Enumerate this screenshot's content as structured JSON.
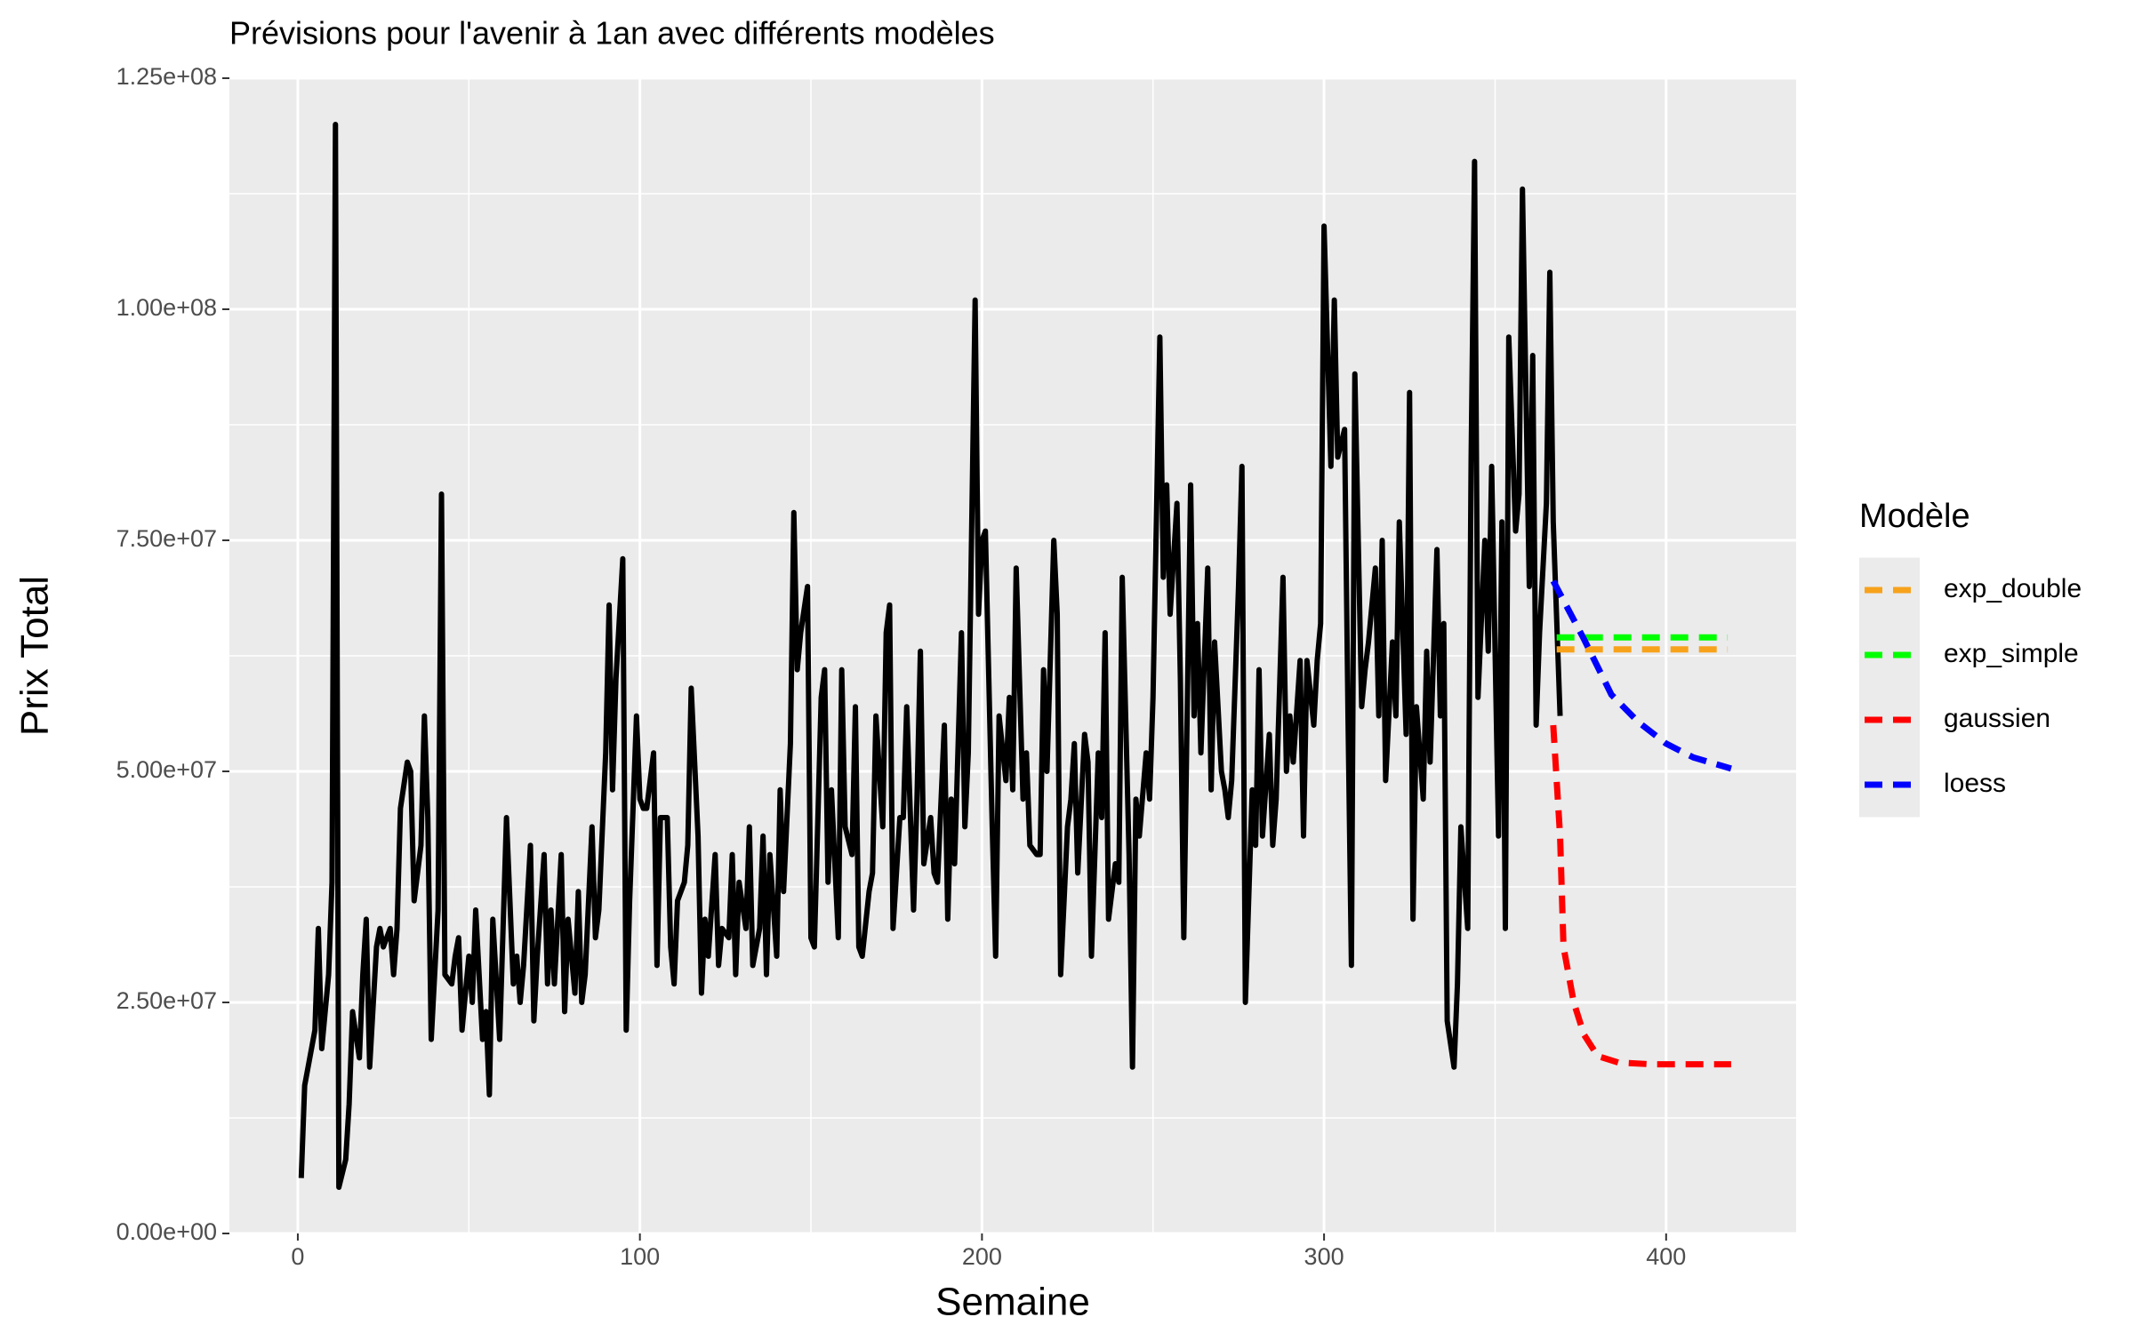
{
  "chart_data": {
    "type": "line",
    "title": "Prévisions pour l'avenir à 1an avec différents modèles",
    "x_label": "Semaine",
    "y_label": "Prix Total",
    "legend_title": "Modèle",
    "legend_position": "right",
    "grid": true,
    "minor_grid": true,
    "xlim": [
      -20,
      438
    ],
    "ylim": [
      0,
      125000000
    ],
    "xticks": [
      0,
      100,
      200,
      300,
      400
    ],
    "yticks": [
      {
        "value": 0,
        "label": "0.00e+00"
      },
      {
        "value": 25000000,
        "label": "2.50e+07"
      },
      {
        "value": 50000000,
        "label": "5.00e+07"
      },
      {
        "value": 75000000,
        "label": "7.50e+07"
      },
      {
        "value": 100000000,
        "label": "1.00e+08"
      },
      {
        "value": 125000000,
        "label": "1.25e+08"
      }
    ],
    "color": "#000000",
    "x": [
      1,
      2,
      3,
      5,
      6,
      7,
      9,
      10,
      11,
      12,
      14,
      15,
      16,
      18,
      19,
      20,
      21,
      23,
      24,
      25,
      27,
      28,
      29,
      30,
      32,
      33,
      34,
      36,
      37,
      38,
      39,
      41,
      42,
      43,
      45,
      46,
      47,
      48,
      50,
      51,
      52,
      54,
      55,
      56,
      57,
      59,
      60,
      61,
      63,
      64,
      65,
      66,
      68,
      69,
      70,
      72,
      73,
      74,
      75,
      77,
      78,
      79,
      81,
      82,
      83,
      84,
      86,
      87,
      88,
      90,
      91,
      92,
      93,
      95,
      96,
      97,
      99,
      100,
      101,
      102,
      104,
      105,
      106,
      108,
      109,
      110,
      111,
      113,
      114,
      115,
      117,
      118,
      119,
      120,
      122,
      123,
      124,
      126,
      127,
      128,
      129,
      131,
      132,
      133,
      135,
      136,
      137,
      138,
      140,
      141,
      142,
      144,
      145,
      146,
      147,
      149,
      150,
      151,
      153,
      154,
      155,
      156,
      158,
      159,
      160,
      162,
      163,
      164,
      165,
      167,
      168,
      169,
      171,
      172,
      173,
      174,
      176,
      177,
      178,
      180,
      181,
      182,
      183,
      185,
      186,
      187,
      189,
      190,
      191,
      192,
      194,
      195,
      196,
      198,
      199,
      200,
      201,
      203,
      204,
      205,
      207,
      208,
      209,
      210,
      212,
      213,
      214,
      216,
      217,
      218,
      219,
      221,
      222,
      223,
      225,
      226,
      227,
      228,
      230,
      231,
      232,
      234,
      235,
      236,
      237,
      239,
      240,
      241,
      243,
      244,
      245,
      246,
      248,
      249,
      250,
      252,
      253,
      254,
      255,
      257,
      258,
      259,
      261,
      262,
      263,
      264,
      266,
      267,
      268,
      270,
      271,
      272,
      273,
      275,
      276,
      277,
      279,
      280,
      281,
      282,
      284,
      285,
      286,
      288,
      289,
      290,
      291,
      293,
      294,
      295,
      297,
      298,
      299,
      300,
      302,
      303,
      304,
      306,
      307,
      308,
      309,
      311,
      312,
      313,
      315,
      316,
      317,
      318,
      320,
      321,
      322,
      324,
      325,
      326,
      327,
      329,
      330,
      331,
      333,
      334,
      335,
      336,
      338,
      339,
      340,
      342,
      343,
      344,
      345,
      347,
      348,
      349,
      351,
      352,
      353,
      354,
      356,
      357,
      358,
      360,
      361,
      362,
      363,
      365,
      366,
      367,
      369
    ],
    "values": [
      6000000.0,
      16000000.0,
      18000000.0,
      22000000.0,
      33000000.0,
      20000000.0,
      28000000.0,
      38000000.0,
      120000000.0,
      5000000.0,
      8000000.0,
      14000000.0,
      24000000.0,
      19000000.0,
      28000000.0,
      34000000.0,
      18000000.0,
      31000000.0,
      33000000.0,
      31000000.0,
      33000000.0,
      28000000.0,
      33000000.0,
      46000000.0,
      51000000.0,
      50000000.0,
      36000000.0,
      42000000.0,
      56000000.0,
      45000000.0,
      21000000.0,
      35000000.0,
      80000000.0,
      28000000.0,
      27000000.0,
      30000000.0,
      32000000.0,
      22000000.0,
      30000000.0,
      25000000.0,
      35000000.0,
      21000000.0,
      24000000.0,
      15000000.0,
      34000000.0,
      21000000.0,
      33000000.0,
      45000000.0,
      27000000.0,
      30000000.0,
      25000000.0,
      29000000.0,
      42000000.0,
      23000000.0,
      30000000.0,
      41000000.0,
      27000000.0,
      35000000.0,
      27000000.0,
      41000000.0,
      24000000.0,
      34000000.0,
      26000000.0,
      37000000.0,
      25000000.0,
      28000000.0,
      44000000.0,
      32000000.0,
      35000000.0,
      52000000.0,
      68000000.0,
      48000000.0,
      60000000.0,
      73000000.0,
      22000000.0,
      36000000.0,
      56000000.0,
      47000000.0,
      46000000.0,
      46000000.0,
      52000000.0,
      29000000.0,
      45000000.0,
      45000000.0,
      31000000.0,
      27000000.0,
      36000000.0,
      38000000.0,
      42000000.0,
      59000000.0,
      43000000.0,
      26000000.0,
      34000000.0,
      30000000.0,
      41000000.0,
      29000000.0,
      33000000.0,
      32000000.0,
      41000000.0,
      28000000.0,
      38000000.0,
      33000000.0,
      44000000.0,
      29000000.0,
      33000000.0,
      43000000.0,
      28000000.0,
      41000000.0,
      30000000.0,
      48000000.0,
      37000000.0,
      53000000.0,
      78000000.0,
      61000000.0,
      65000000.0,
      70000000.0,
      32000000.0,
      31000000.0,
      58000000.0,
      61000000.0,
      38000000.0,
      48000000.0,
      32000000.0,
      61000000.0,
      44000000.0,
      41000000.0,
      57000000.0,
      31000000.0,
      30000000.0,
      37000000.0,
      39000000.0,
      56000000.0,
      44000000.0,
      65000000.0,
      68000000.0,
      33000000.0,
      45000000.0,
      45000000.0,
      57000000.0,
      35000000.0,
      47000000.0,
      63000000.0,
      40000000.0,
      45000000.0,
      39000000.0,
      38000000.0,
      55000000.0,
      34000000.0,
      47000000.0,
      40000000.0,
      65000000.0,
      44000000.0,
      52000000.0,
      101000000.0,
      67000000.0,
      75000000.0,
      76000000.0,
      44000000.0,
      30000000.0,
      56000000.0,
      49000000.0,
      58000000.0,
      48000000.0,
      72000000.0,
      47000000.0,
      52000000.0,
      42000000.0,
      41000000.0,
      41000000.0,
      61000000.0,
      50000000.0,
      75000000.0,
      67000000.0,
      28000000.0,
      44000000.0,
      47000000.0,
      53000000.0,
      39000000.0,
      54000000.0,
      51000000.0,
      30000000.0,
      52000000.0,
      45000000.0,
      65000000.0,
      34000000.0,
      40000000.0,
      38000000.0,
      71000000.0,
      41000000.0,
      18000000.0,
      47000000.0,
      43000000.0,
      52000000.0,
      47000000.0,
      58000000.0,
      97000000.0,
      71000000.0,
      81000000.0,
      67000000.0,
      79000000.0,
      60000000.0,
      32000000.0,
      81000000.0,
      56000000.0,
      66000000.0,
      52000000.0,
      72000000.0,
      48000000.0,
      64000000.0,
      50000000.0,
      48000000.0,
      45000000.0,
      49000000.0,
      70000000.0,
      83000000.0,
      25000000.0,
      48000000.0,
      42000000.0,
      61000000.0,
      43000000.0,
      54000000.0,
      42000000.0,
      47000000.0,
      71000000.0,
      50000000.0,
      56000000.0,
      51000000.0,
      62000000.0,
      43000000.0,
      62000000.0,
      55000000.0,
      62000000.0,
      66000000.0,
      109000000.0,
      83000000.0,
      101000000.0,
      84000000.0,
      87000000.0,
      56000000.0,
      29000000.0,
      93000000.0,
      57000000.0,
      61000000.0,
      64000000.0,
      72000000.0,
      56000000.0,
      75000000.0,
      49000000.0,
      64000000.0,
      56000000.0,
      77000000.0,
      54000000.0,
      91000000.0,
      34000000.0,
      57000000.0,
      47000000.0,
      63000000.0,
      51000000.0,
      74000000.0,
      56000000.0,
      66000000.0,
      23000000.0,
      18000000.0,
      27000000.0,
      44000000.0,
      33000000.0,
      84000000.0,
      116000000.0,
      58000000.0,
      75000000.0,
      63000000.0,
      83000000.0,
      43000000.0,
      77000000.0,
      33000000.0,
      97000000.0,
      76000000.0,
      80000000.0,
      113000000.0,
      70000000.0,
      95000000.0,
      55000000.0,
      65000000.0,
      79000000.0,
      104000000.0,
      77000000.0,
      56000000.0
    ],
    "series": [
      {
        "name": "exp_double",
        "color": "#f7a21b",
        "x": [
          368,
          418
        ],
        "values": [
          63200000,
          63200000
        ]
      },
      {
        "name": "exp_simple",
        "color": "#00ff00",
        "x": [
          368,
          418
        ],
        "values": [
          64500000,
          64500000
        ]
      },
      {
        "name": "gaussien",
        "color": "#ff0000",
        "x": [
          367,
          369,
          370,
          373,
          376,
          380,
          386,
          396,
          419
        ],
        "values": [
          55000000,
          43000000,
          31000000,
          25000000,
          21500000,
          19200000,
          18500000,
          18300000,
          18300000
        ]
      },
      {
        "name": "loess",
        "color": "#0000ff",
        "x": [
          367,
          376,
          384,
          392,
          400,
          408,
          419
        ],
        "values": [
          70600000,
          64300000,
          58300000,
          55300000,
          53000000,
          51500000,
          50300000
        ]
      }
    ]
  }
}
